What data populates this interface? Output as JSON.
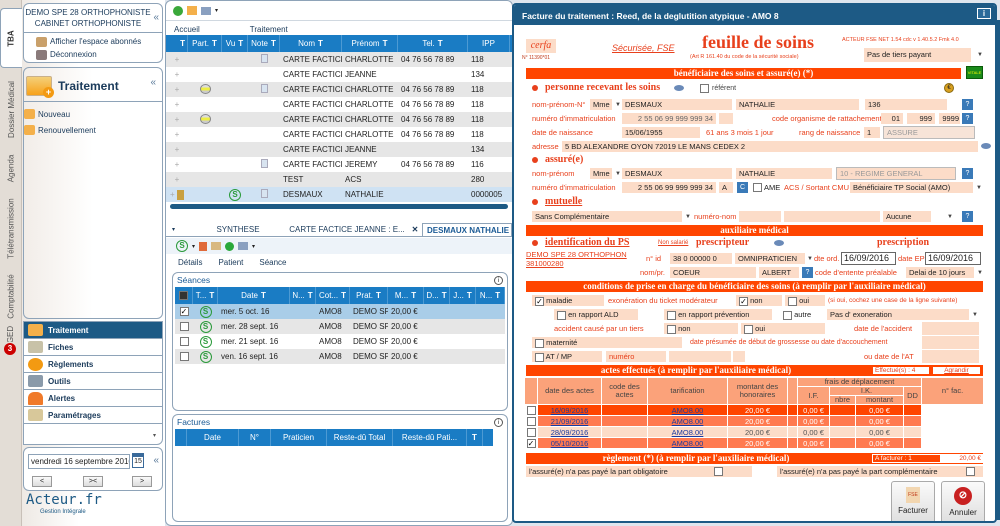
{
  "vertical_tabs": [
    "TBA",
    "Dossier Médical",
    "Agenda",
    "Télétransmission",
    "Comptabilité",
    "GED"
  ],
  "ged_badge": "3",
  "left_panel": {
    "clinic_line1": "DEMO SPE 28 ORTHOPHONISTE",
    "clinic_line2": "CABINET ORTHOPHONISTE",
    "collapse": "«",
    "links": [
      "Afficher l'espace abonnés",
      "Déconnexion"
    ],
    "section_title": "Traitement",
    "section_items": [
      "Nouveau",
      "Renouvellement"
    ],
    "nav": [
      "Traitement",
      "Fiches",
      "Règlements",
      "Outils",
      "Alertes",
      "Paramétrages"
    ],
    "date_value": "vendredi 16 septembre 2016",
    "calendar_day": "15",
    "nav_buttons": [
      "<",
      "><",
      ">"
    ],
    "logo": "Acteur.fr",
    "logo_sub": "Gestion Intégrale"
  },
  "patients": {
    "ribbon_tabs": [
      "Accueil",
      "Traitement"
    ],
    "columns": [
      "",
      "Part.",
      "Vu",
      "Note",
      "Nom",
      "Prénom",
      "Tel.",
      "IPP"
    ],
    "rows": [
      {
        "nom": "CARTE FACTICE",
        "prenom": "CHARLOTTE",
        "tel": "04 76 56 78 89",
        "ipp": "118",
        "note": true,
        "part": false,
        "vu": false
      },
      {
        "nom": "CARTE FACTICE",
        "prenom": "JEANNE",
        "tel": "",
        "ipp": "134",
        "note": false,
        "part": false,
        "vu": false
      },
      {
        "nom": "CARTE FACTICE",
        "prenom": "CHARLOTTE",
        "tel": "04 76 56 78 89",
        "ipp": "118",
        "note": true,
        "part": true,
        "vu": false
      },
      {
        "nom": "CARTE FACTICE",
        "prenom": "CHARLOTTE",
        "tel": "04 76 56 78 89",
        "ipp": "118",
        "note": false,
        "part": false,
        "vu": false
      },
      {
        "nom": "CARTE FACTICE",
        "prenom": "CHARLOTTE",
        "tel": "04 76 56 78 89",
        "ipp": "118",
        "note": false,
        "part": true,
        "vu": false
      },
      {
        "nom": "CARTE FACTICE",
        "prenom": "CHARLOTTE",
        "tel": "04 76 56 78 89",
        "ipp": "118",
        "note": false,
        "part": false,
        "vu": false
      },
      {
        "nom": "CARTE FACTICE",
        "prenom": "JEANNE",
        "tel": "",
        "ipp": "134",
        "note": false,
        "part": false,
        "vu": false
      },
      {
        "nom": "CARTE FACTICE",
        "prenom": "JEREMY",
        "tel": "04 76 56 78 89",
        "ipp": "116",
        "note": true,
        "part": false,
        "vu": false
      },
      {
        "nom": "TEST",
        "prenom": "ACS",
        "tel": "",
        "ipp": "280",
        "note": false,
        "part": false,
        "vu": false
      },
      {
        "nom": "DESMAUX",
        "prenom": "NATHALIE",
        "tel": "",
        "ipp": "0000005",
        "note": true,
        "part": false,
        "vu": true
      }
    ]
  },
  "doc_tabs": [
    "SYNTHESE",
    "CARTE FACTICE JEANNE : E...",
    "DESMAUX NATHALIE"
  ],
  "sub_tabs": [
    "Détails",
    "Patient",
    "Séance"
  ],
  "seances": {
    "title": "Séances",
    "columns": [
      "T...",
      "Date",
      "N...",
      "Cot...",
      "Prat.",
      "M...",
      "D...",
      "J...",
      "N..."
    ],
    "rows": [
      {
        "checked": true,
        "date": "mer. 5 oct. 16",
        "cot": "AMO8",
        "prat": "DEMO SP",
        "montant": "20,00 €"
      },
      {
        "checked": false,
        "date": "mer. 28 sept. 16",
        "cot": "AMO8",
        "prat": "DEMO SP",
        "montant": "20,00 €"
      },
      {
        "checked": false,
        "date": "mer. 21 sept. 16",
        "cot": "AMO8",
        "prat": "DEMO SP",
        "montant": "20,00 €"
      },
      {
        "checked": false,
        "date": "ven. 16 sept. 16",
        "cot": "AMO8",
        "prat": "DEMO SP",
        "montant": "20,00 €"
      }
    ]
  },
  "factures": {
    "title": "Factures",
    "columns": [
      "Date",
      "N°",
      "Praticien",
      "Reste-dû Total",
      "Reste-dû Pati..."
    ]
  },
  "dialog": {
    "title": "Facture du traitement : Reed, de la deglutition atypique - AMO 8",
    "cerfa": "cerfa",
    "cerfa_num": "N° 11390*01",
    "securisee": "Sécurisée, FSE",
    "heading": "feuille de soins",
    "subheading": "(Art R 161.40 du code de la sécurité sociale)",
    "version": "ACTEUR FSE NET 1.54  cdc v 1.40.5.2  Fmk 4.0",
    "tiers_payant": "Pas de tiers payant",
    "band_beneficiaire": "bénéficiaire des soins et assuré(e) (*)",
    "personne": {
      "title": "personne recevant les soins",
      "referent": "référent",
      "lbl_nom": "nom-prénom-N°",
      "civ": "Mme",
      "nom": "DESMAUX",
      "prenom": "NATHALIE",
      "num": "136",
      "lbl_immat": "numéro d'immatriculation",
      "immat": "2 55 06 99 999 999 34",
      "lbl_organisme": "code organisme de rattachement",
      "org1": "01",
      "org2": "999",
      "org3": "9999",
      "lbl_naissance": "date de naissance",
      "naissance": "15/06/1955",
      "age": "61 ans 3 mois 1 jour",
      "lbl_rang": "rang de naissance",
      "rang": "1",
      "qualite": "ASSURE",
      "lbl_adresse": "adresse",
      "adresse": "5 BD ALEXANDRE OYON  72019 LE MANS CEDEX 2"
    },
    "assure": {
      "title": "assuré(e)",
      "lbl_nom": "nom-prénom",
      "civ": "Mme",
      "nom": "DESMAUX",
      "prenom": "NATHALIE",
      "regime": "10 - REGIME GENERAL",
      "lbl_immat": "numéro d'immatriculation",
      "immat": "2 55 06 99 999 999 34",
      "cle": "A",
      "c_btn": "C",
      "ame": "AME",
      "lbl_acs": "ACS / Sortant CMU",
      "acs": "Bénéficiaire TP Social (AMO)"
    },
    "mutuelle": {
      "title": "mutuelle",
      "value": "Sans Complémentaire",
      "lbl_num": "numéro-nom",
      "aucune": "Aucune"
    },
    "band_auxiliaire": "auxiliaire médical",
    "ps": {
      "title": "identification du PS",
      "name": "DEMO SPE 28 ORTHOPHON",
      "num": "381000280",
      "non_salarie": "Non salarié",
      "prescripteur": "prescripteur",
      "prescription": "prescription",
      "lbl_id": "n° id",
      "id": "38 0 00000 0",
      "specialite": "OMNIPRATICIEN",
      "lbl_nompr": "nom/pr.",
      "nom": "COEUR",
      "prenom": "ALBERT",
      "lbl_dte_ord": "dte ord.",
      "dte_ord": "16/09/2016",
      "lbl_date_ep": "date EP",
      "date_ep": "16/09/2016",
      "lbl_entente": "code d'entente préalable",
      "entente": "Delai de 10 jours"
    },
    "band_conditions": "conditions de prise en charge du bénéficiaire des soins (à remplir par l'auxiliaire médical)",
    "conditions": {
      "maladie": "maladie",
      "exoneration": "exonération du ticket modérateur",
      "non": "non",
      "oui": "oui",
      "si_oui": "(si oui, cochez une case de la ligne suivante)",
      "ald": "en rapport ALD",
      "prevention": "en rapport prévention",
      "autre": "autre",
      "exo_value": "Pas d' exoneration",
      "accident": "accident causé par un tiers",
      "date_accident": "date de l'accident",
      "maternite": "maternité",
      "grossesse": "date présumée de début de grossesse ou date d'accouchement",
      "atmp": "AT / MP",
      "numero": "numéro",
      "date_at": "ou date de l'AT"
    },
    "band_actes": "actes effectués (à remplir par l'auxiliaire médical)",
    "effectues": "Effectué(s) : 4",
    "agrandir": "Agrandir",
    "actes_headers": {
      "date": "date des actes",
      "code": "code des actes",
      "tarif": "tarification",
      "montant": "montant des honoraires",
      "frais": "frais de déplacement",
      "if": "I.F.",
      "ik": "I.K.",
      "nbre": "nbre",
      "ik_montant": "montant",
      "dd": "DD",
      "nfac": "n° fac."
    },
    "actes": [
      {
        "checked": false,
        "date": "16/09/2016",
        "tarif": "AMO8.00",
        "montant": "20,00 €",
        "if": "0,00 €",
        "ik": "0,00 €"
      },
      {
        "checked": false,
        "date": "21/09/2016",
        "tarif": "AMO8.00",
        "montant": "20,00 €",
        "if": "0,00 €",
        "ik": "0,00 €"
      },
      {
        "checked": false,
        "date": "28/09/2016",
        "tarif": "AMO8.00",
        "montant": "20,00 €",
        "if": "0,00 €",
        "ik": "0,00 €"
      },
      {
        "checked": true,
        "date": "05/10/2016",
        "tarif": "AMO8.00",
        "montant": "20,00 €",
        "if": "0,00 €",
        "ik": "0,00 €"
      }
    ],
    "band_reglement": "règlement (*) (à remplir par l'auxiliaire médical)",
    "a_facturer": "A facturer : 1",
    "total": "20,00 €",
    "part_obligatoire": "l'assuré(e) n'a pas payé la part obligatoire",
    "part_complementaire": "l'assuré(e) n'a pas payé la part complémentaire",
    "btn_facturer": "Facturer",
    "btn_annuler": "Annuler",
    "fse_label": "FSE"
  },
  "colors": {
    "accent": "#1d5a85",
    "grid_header": "#1a7cc4",
    "form_band": "#ff4500",
    "form_field": "#fcdcc8",
    "form_label": "#e8401c"
  }
}
